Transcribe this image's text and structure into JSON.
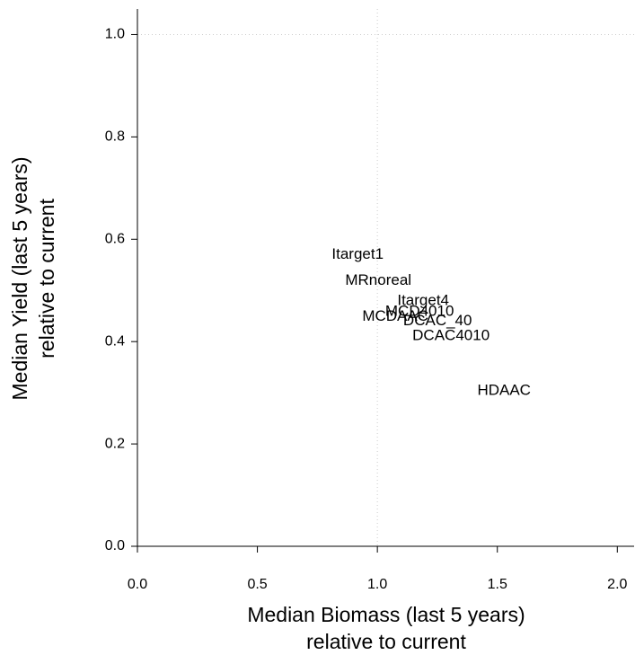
{
  "chart_data": {
    "type": "scatter",
    "xlabel": [
      "Median Biomass (last 5 years)",
      "relative to current"
    ],
    "ylabel": [
      "Median Yield (last 5 years)",
      "relative to current"
    ],
    "labels": [
      "Itarget1",
      "MRnoreal",
      "Itarget4",
      "MCDAAC",
      "MCD4010",
      "DCAC_40",
      "DCAC4010",
      "HDAAC"
    ],
    "x": [
      0.918,
      1.004,
      1.191,
      1.075,
      1.176,
      1.251,
      1.307,
      1.528
    ],
    "y": [
      0.57,
      0.519,
      0.479,
      0.449,
      0.458,
      0.44,
      0.411,
      0.304
    ],
    "color": "#000000",
    "xlim": [
      0,
      2.07
    ],
    "ylim": [
      0,
      1.05
    ],
    "xticks": [
      {
        "value": 0,
        "label": "0.0"
      },
      0.5,
      {
        "value": 1,
        "label": "1.0"
      },
      1.5,
      {
        "value": 2,
        "label": "2.0"
      }
    ],
    "yticks": [
      {
        "value": 0,
        "label": "0.0"
      },
      0.2,
      0.4,
      0.6,
      0.8,
      {
        "value": 1,
        "label": "1.0"
      }
    ],
    "reference_lines": {
      "x": 1,
      "y": 1
    }
  }
}
